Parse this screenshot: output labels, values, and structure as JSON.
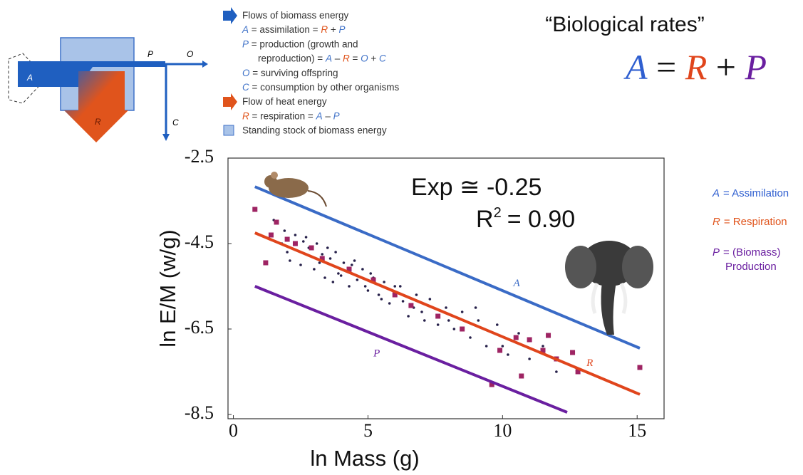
{
  "title": "“Biological rates”",
  "equation": [
    "A",
    "=",
    "R",
    "+",
    "P"
  ],
  "diagram": {
    "labels": {
      "A": "A",
      "P": "P",
      "O": "O",
      "C": "C",
      "R": "R"
    },
    "legend": [
      [
        "Flows of biomass energy"
      ],
      [
        {
          "text": "A",
          "color": "#3f72c8"
        },
        " = assimilation = ",
        {
          "text": "R",
          "color": "#e0541c"
        },
        " + ",
        {
          "text": "P",
          "color": "#3f72c8"
        }
      ],
      [
        {
          "text": "P",
          "color": "#3f72c8"
        },
        " = production (growth and"
      ],
      [
        "reproduction) = ",
        {
          "text": "A",
          "color": "#3f72c8"
        },
        " – ",
        {
          "text": "R",
          "color": "#e0541c"
        },
        " = ",
        {
          "text": "O",
          "color": "#3f72c8"
        },
        " + ",
        {
          "text": "C",
          "color": "#3f72c8"
        }
      ],
      [
        {
          "text": "O",
          "color": "#3f72c8"
        },
        " = surviving offspring"
      ],
      [
        {
          "text": "C",
          "color": "#3f72c8"
        },
        " = consumption by other organisms"
      ],
      [
        "Flow of heat energy"
      ],
      [
        {
          "text": "R",
          "color": "#e0541c"
        },
        " = respiration = ",
        {
          "text": "A",
          "color": "#3f72c8"
        },
        " – ",
        {
          "text": "P",
          "color": "#3f72c8"
        }
      ],
      [
        "Standing stock of biomass energy"
      ]
    ]
  },
  "side_legend": [
    {
      "symbol": "A",
      "lines": [
        "= Assimilation"
      ],
      "color": "#2f5fd0"
    },
    {
      "symbol": "R",
      "lines": [
        "= Respiration"
      ],
      "color": "#e0541c"
    },
    {
      "symbol": "P",
      "lines": [
        "= (Biomass)",
        "Production"
      ],
      "color": "#6a1fa0"
    }
  ],
  "chart_data": {
    "type": "scatter",
    "x_label": "ln Mass (g)",
    "y_label": "ln E/M (w/g)",
    "annotations": [
      "Exp ≅ -0.25",
      "R",
      "2",
      "= 0.90"
    ],
    "xlim": [
      -0.2,
      16
    ],
    "ylim": [
      -8.6,
      -2.5
    ],
    "xticks": [
      0,
      5,
      10,
      15
    ],
    "yticks": [
      -2.5,
      -4.5,
      -6.5,
      -8.5
    ],
    "series": [
      {
        "kind": "scatter",
        "marker": "dot",
        "color": "#26204a",
        "x": [
          1.5,
          1.9,
          2.1,
          2.3,
          2.5,
          2.6,
          2.8,
          3.0,
          3.1,
          3.3,
          3.4,
          3.6,
          3.8,
          3.9,
          4.1,
          4.3,
          4.4,
          4.6,
          4.8,
          5.0,
          5.2,
          5.4,
          5.6,
          5.8,
          6.0,
          6.3,
          6.5,
          6.8,
          7.0,
          7.3,
          7.6,
          7.9,
          8.2,
          8.5,
          8.8,
          9.1,
          9.4,
          9.8,
          10.2,
          10.6,
          11.0,
          11.5,
          12.0,
          2.0,
          2.7,
          3.2,
          3.5,
          4.0,
          4.5,
          5.1,
          5.5,
          6.2,
          7.1,
          8.0,
          9.0,
          1.8,
          3.7,
          4.9,
          6.7,
          10.0
        ],
        "values": [
          -3.95,
          -4.2,
          -4.9,
          -4.3,
          -5.0,
          -4.45,
          -4.6,
          -5.1,
          -4.5,
          -4.75,
          -5.3,
          -4.85,
          -4.7,
          -5.2,
          -4.95,
          -5.5,
          -5.0,
          -5.35,
          -5.1,
          -5.6,
          -5.3,
          -5.7,
          -5.4,
          -5.9,
          -5.5,
          -5.85,
          -6.2,
          -5.7,
          -6.1,
          -5.8,
          -6.4,
          -6.0,
          -6.5,
          -6.1,
          -6.7,
          -6.3,
          -6.9,
          -6.4,
          -7.1,
          -6.6,
          -7.2,
          -6.9,
          -7.5,
          -4.7,
          -4.35,
          -4.95,
          -4.6,
          -5.25,
          -4.9,
          -5.2,
          -5.8,
          -5.5,
          -6.3,
          -6.3,
          -6.0,
          -4.5,
          -5.4,
          -5.5,
          -6.0,
          -6.9
        ]
      },
      {
        "kind": "scatter",
        "marker": "square",
        "color": "#9e2463",
        "x": [
          0.8,
          1.6,
          1.2,
          1.4,
          2.0,
          2.3,
          2.9,
          3.3,
          4.3,
          5.2,
          6.0,
          6.6,
          7.6,
          8.5,
          9.6,
          9.9,
          10.5,
          10.7,
          11.0,
          11.5,
          11.7,
          12.0,
          12.6,
          12.8,
          15.1
        ],
        "values": [
          -3.7,
          -4.0,
          -4.95,
          -4.3,
          -4.4,
          -4.5,
          -4.6,
          -4.85,
          -5.1,
          -5.35,
          -5.7,
          -5.95,
          -6.2,
          -6.5,
          -7.8,
          -7.0,
          -6.7,
          -7.6,
          -6.75,
          -7.0,
          -6.65,
          -7.2,
          -7.05,
          -7.5,
          -7.4
        ]
      },
      {
        "kind": "line",
        "name": "A",
        "color": "#3a6bc6",
        "x": [
          0.8,
          15.1
        ],
        "values": [
          -3.17,
          -6.95
        ]
      },
      {
        "kind": "line",
        "name": "R",
        "color": "#e0451c",
        "x": [
          0.8,
          15.1
        ],
        "values": [
          -4.25,
          -8.03
        ]
      },
      {
        "kind": "line",
        "name": "P",
        "color": "#6a1fa0",
        "x": [
          0.8,
          12.4
        ],
        "values": [
          -5.5,
          -8.45
        ]
      }
    ]
  }
}
